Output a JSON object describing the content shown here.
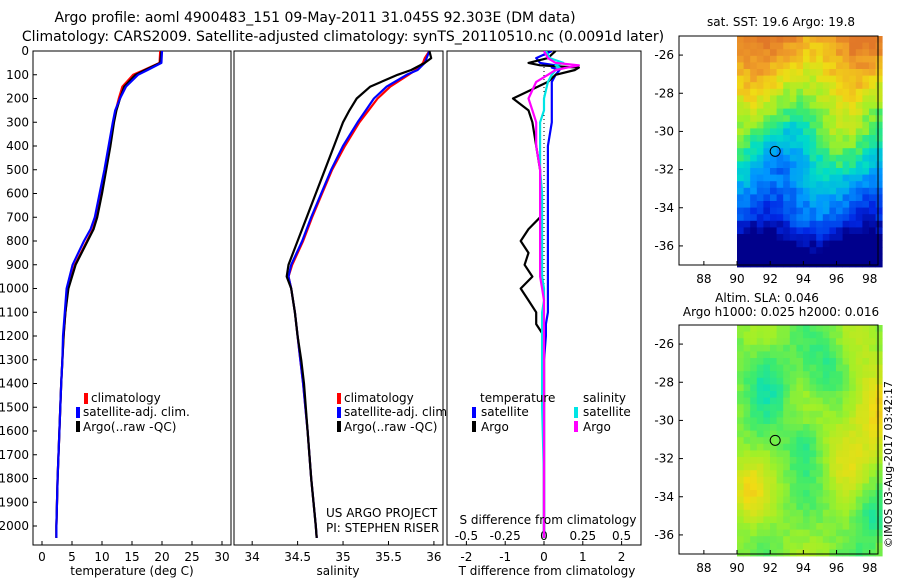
{
  "header": {
    "line1": "Argo profile: aoml 4900483_151 09-May-2011 31.045S 92.303E (DM data)",
    "line2": "Climatology: CARS2009. Satellite-adjusted climatology: synTS_20110510.nc (0.0091d later)"
  },
  "colors": {
    "climatology": "#ff0000",
    "satellite": "#0000ff",
    "argo": "#000000",
    "sal_satellite": "#00e5e5",
    "sal_argo": "#ff00ff"
  },
  "depth_ticks": [
    0,
    100,
    200,
    300,
    400,
    500,
    600,
    700,
    800,
    900,
    1000,
    1100,
    1200,
    1300,
    1400,
    1500,
    1600,
    1700,
    1800,
    1900,
    2000
  ],
  "chart_data": [
    {
      "type": "line",
      "name": "temperature",
      "xlabel": "temperature (deg C)",
      "xlim": [
        -1.5,
        31.5
      ],
      "ylim": [
        0,
        2080
      ],
      "xticks": [
        0,
        5,
        10,
        15,
        20,
        25,
        30
      ],
      "legend": [
        "climatology",
        "satellite-adj. clim.",
        "Argo(..raw -QC)"
      ],
      "depth": [
        0,
        50,
        80,
        100,
        150,
        200,
        250,
        300,
        400,
        500,
        600,
        700,
        750,
        800,
        900,
        1000,
        1100,
        1200,
        1300,
        1400,
        1600,
        1800,
        2000,
        2050
      ],
      "series": [
        {
          "name": "climatology",
          "values": [
            19.7,
            19.6,
            17.0,
            15.2,
            13.4,
            12.8,
            12.3,
            11.9,
            11.3,
            10.6,
            9.9,
            9.1,
            8.5,
            7.5,
            5.5,
            4.3,
            3.9,
            3.6,
            3.4,
            3.2,
            2.9,
            2.6,
            2.4,
            2.4
          ]
        },
        {
          "name": "satellite-adj. clim.",
          "values": [
            19.9,
            19.7,
            17.2,
            15.6,
            13.7,
            13.0,
            12.4,
            12.0,
            11.4,
            10.7,
            10.0,
            9.2,
            8.6,
            7.6,
            5.6,
            4.4,
            3.9,
            3.6,
            3.4,
            3.2,
            2.9,
            2.6,
            2.4,
            2.4
          ]
        },
        {
          "name": "Argo(..raw -QC)",
          "values": [
            20.0,
            19.9,
            17.6,
            16.0,
            14.0,
            13.0,
            12.2,
            11.8,
            11.1,
            10.4,
            9.6,
            8.8,
            8.1,
            7.0,
            5.1,
            4.1,
            3.8,
            3.5,
            3.4,
            3.2,
            2.9,
            2.6,
            2.4,
            2.4
          ]
        }
      ]
    },
    {
      "type": "line",
      "name": "salinity",
      "xlabel": "salinity",
      "xlim": [
        33.8,
        36.1
      ],
      "ylim": [
        0,
        2080
      ],
      "xticks": [
        34,
        34.5,
        35,
        35.5,
        36
      ],
      "xticklabels": [
        "34",
        "34.5",
        "35",
        "35.5",
        "36"
      ],
      "legend": [
        "climatology",
        "satellite-adj. clim.",
        "Argo(..raw -QC)"
      ],
      "annotation": [
        "US ARGO PROJECT",
        "PI: STEPHEN RISER"
      ],
      "depth": [
        0,
        30,
        50,
        80,
        100,
        150,
        200,
        250,
        300,
        400,
        500,
        600,
        700,
        800,
        900,
        950,
        1000,
        1100,
        1200,
        1300,
        1400,
        1600,
        1800,
        2000,
        2050
      ],
      "series": [
        {
          "name": "climatology",
          "values": [
            35.95,
            35.9,
            35.88,
            35.8,
            35.72,
            35.52,
            35.38,
            35.28,
            35.18,
            35.02,
            34.88,
            34.77,
            34.66,
            34.56,
            34.44,
            34.4,
            34.43,
            34.47,
            34.5,
            34.53,
            34.56,
            34.61,
            34.65,
            34.7,
            34.71
          ]
        },
        {
          "name": "satellite-adj. clim.",
          "values": [
            35.95,
            35.92,
            35.9,
            35.82,
            35.7,
            35.48,
            35.34,
            35.25,
            35.16,
            35.0,
            34.87,
            34.76,
            34.65,
            34.55,
            34.43,
            34.4,
            34.43,
            34.47,
            34.5,
            34.53,
            34.56,
            34.61,
            34.65,
            34.7,
            34.71
          ]
        },
        {
          "name": "Argo(..raw -QC)",
          "values": [
            35.95,
            35.97,
            35.9,
            35.75,
            35.6,
            35.3,
            35.15,
            35.07,
            35.0,
            34.9,
            34.8,
            34.7,
            34.6,
            34.5,
            34.4,
            34.38,
            34.43,
            34.47,
            34.5,
            34.54,
            34.57,
            34.61,
            34.65,
            34.7,
            34.71
          ]
        }
      ]
    },
    {
      "type": "line",
      "name": "differences",
      "xlabel_bottom": "T difference from climatology",
      "xlabel_top": "S difference from climatology",
      "xlim": [
        -2.5,
        2.5
      ],
      "ylim": [
        0,
        2080
      ],
      "xticks_bottom": [
        -2,
        -1,
        0,
        1,
        2
      ],
      "xticks_top": [
        -0.5,
        -0.25,
        0,
        0.25,
        0.5
      ],
      "xticks_top_pos": [
        -2,
        -1,
        0,
        1,
        2
      ],
      "legend_header": [
        "temperature",
        "salinity"
      ],
      "legend": [
        "satellite",
        "Argo",
        "satellite",
        "Argo"
      ],
      "depth": [
        0,
        30,
        50,
        60,
        70,
        80,
        100,
        130,
        200,
        250,
        300,
        400,
        500,
        600,
        700,
        750,
        800,
        850,
        900,
        950,
        1000,
        1050,
        1100,
        1150,
        1200,
        1300,
        1500,
        1800,
        2050
      ],
      "series": [
        {
          "name": "temperature satellite",
          "values": [
            0.2,
            -0.2,
            -0.1,
            0.3,
            0.2,
            0.4,
            0.3,
            0.2,
            0.2,
            0.2,
            0.2,
            0.1,
            0.1,
            0.1,
            0.1,
            0.1,
            0.1,
            0.1,
            0.1,
            0.1,
            0.1,
            0.1,
            0.1,
            0.05,
            0.05,
            0.0,
            0.0,
            0.0,
            0.0
          ]
        },
        {
          "name": "temperature Argo",
          "values": [
            0.3,
            0.1,
            -0.4,
            -0.1,
            0.9,
            0.8,
            0.3,
            0.1,
            -0.8,
            -0.4,
            -0.3,
            -0.2,
            -0.1,
            -0.1,
            -0.1,
            -0.4,
            -0.6,
            -0.4,
            -0.5,
            -0.3,
            -0.6,
            -0.4,
            -0.2,
            -0.2,
            0.0,
            0.0,
            0.0,
            0.0,
            0.0
          ]
        },
        {
          "name": "salinity satellite",
          "values": [
            0.05,
            0.15,
            0.5,
            0.3,
            0.4,
            0.3,
            0.2,
            0.1,
            0.0,
            0.0,
            -0.1,
            -0.1,
            -0.1,
            -0.05,
            -0.05,
            -0.05,
            -0.05,
            -0.05,
            -0.05,
            -0.05,
            0.0,
            0.0,
            -0.05,
            -0.05,
            -0.05,
            -0.05,
            -0.05,
            0.0,
            0.0
          ]
        },
        {
          "name": "salinity Argo",
          "values": [
            0.0,
            0.1,
            0.3,
            0.9,
            0.6,
            0.3,
            0.1,
            -0.2,
            -0.4,
            -0.3,
            -0.2,
            -0.2,
            -0.1,
            -0.1,
            -0.1,
            -0.1,
            -0.1,
            -0.1,
            -0.1,
            -0.1,
            -0.05,
            0.0,
            0.0,
            0.0,
            0.0,
            0.0,
            0.0,
            0.0,
            0.0
          ]
        }
      ]
    },
    {
      "type": "heatmap",
      "name": "sst-map",
      "title": "sat. SST: 19.6 Argo: 19.8",
      "xlim": [
        86.5,
        98.5
      ],
      "ylim": [
        -37,
        -25
      ],
      "xticks": [
        88,
        90,
        92,
        94,
        96,
        98
      ],
      "yticks": [
        -26,
        -28,
        -30,
        -32,
        -34,
        -36
      ],
      "data_xmin": 90,
      "profile_location": [
        92.3,
        -31.045
      ]
    },
    {
      "type": "heatmap",
      "name": "sla-map",
      "title1": "Altim. SLA: 0.046",
      "title2": "Argo h1000: 0.025 h2000: 0.016",
      "xlim": [
        86.5,
        98.5
      ],
      "ylim": [
        -37,
        -25
      ],
      "xticks": [
        88,
        90,
        92,
        94,
        96,
        98
      ],
      "yticks": [
        -26,
        -28,
        -30,
        -32,
        -34,
        -36
      ],
      "data_xmin": 90,
      "profile_location": [
        92.3,
        -31.045
      ]
    }
  ],
  "watermark": "©IMOS 03-Aug-2017 03:42:17"
}
